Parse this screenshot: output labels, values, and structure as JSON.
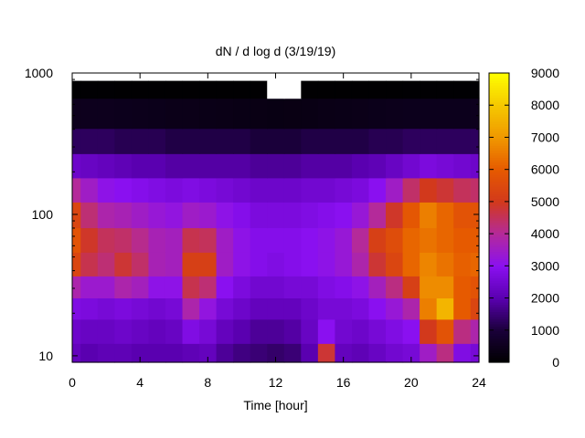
{
  "chart_data": {
    "type": "heatmap",
    "title": "dN / d log d (3/19/19)",
    "xlabel": "Time [hour]",
    "ylabel": "",
    "xlim": [
      0,
      24
    ],
    "ylim": [
      9,
      1000
    ],
    "y_scale": "log",
    "x_ticks": [
      0,
      4,
      8,
      12,
      16,
      20,
      24
    ],
    "y_ticks": [
      10,
      100,
      1000
    ],
    "colorbar": {
      "range": [
        0,
        9000
      ],
      "ticks": [
        0,
        1000,
        2000,
        3000,
        4000,
        5000,
        6000,
        7000,
        8000,
        9000
      ],
      "palette": [
        "#000000",
        "#1a003a",
        "#5a00b0",
        "#8a10f0",
        "#b42a9a",
        "#d2391c",
        "#e65a00",
        "#f09800",
        "#f5c800",
        "#ffff00"
      ]
    },
    "grid": false,
    "legend": "colorbar-right",
    "time_hours": [
      0,
      1,
      2,
      3,
      4,
      5,
      6,
      7,
      8,
      9,
      10,
      11,
      12,
      13,
      14,
      15,
      16,
      17,
      18,
      19,
      20,
      21,
      22,
      23,
      24
    ],
    "diameter_nm": [
      10,
      15,
      22,
      30,
      45,
      65,
      100,
      150,
      220,
      330,
      500,
      880
    ],
    "z": [
      [
        2200,
        2000,
        2100,
        2100,
        2000,
        2000,
        2000,
        2100,
        2200,
        1800,
        1600,
        1500,
        1400,
        1500,
        2000,
        4800,
        2200,
        2100,
        2300,
        2500,
        2600,
        3500,
        4200,
        2800,
        2600
      ],
      [
        2400,
        2300,
        2300,
        2400,
        2300,
        2200,
        2300,
        2800,
        2600,
        2200,
        2000,
        1800,
        1800,
        1900,
        2300,
        3000,
        2500,
        2400,
        2600,
        2800,
        3000,
        5000,
        5800,
        4200,
        3800
      ],
      [
        2800,
        2700,
        2600,
        2700,
        2600,
        2500,
        2600,
        3800,
        3200,
        2600,
        2400,
        2200,
        2200,
        2200,
        2400,
        2600,
        2600,
        2700,
        3000,
        3300,
        3800,
        6600,
        7600,
        6000,
        5400
      ],
      [
        3800,
        3400,
        3400,
        3800,
        3600,
        3100,
        3100,
        4600,
        4300,
        3000,
        2700,
        2500,
        2500,
        2600,
        2600,
        2800,
        2900,
        3100,
        3600,
        4200,
        5200,
        6800,
        6800,
        6000,
        5800
      ],
      [
        5400,
        4600,
        4300,
        4800,
        4400,
        3700,
        3600,
        5200,
        5200,
        3500,
        3100,
        2900,
        2800,
        2900,
        3000,
        3100,
        3300,
        3800,
        4800,
        5400,
        6200,
        6700,
        6400,
        6100,
        6200
      ],
      [
        5800,
        4900,
        4500,
        4400,
        4100,
        3700,
        3600,
        4600,
        4500,
        3500,
        3100,
        2900,
        2900,
        2900,
        3000,
        3100,
        3300,
        4000,
        5200,
        5600,
        6200,
        6400,
        6200,
        6000,
        6000
      ],
      [
        5400,
        4300,
        3800,
        3700,
        3500,
        3300,
        3200,
        3500,
        3400,
        3100,
        2900,
        2700,
        2700,
        2700,
        2800,
        2900,
        3000,
        3300,
        4000,
        4900,
        5900,
        6600,
        6200,
        5800,
        5800
      ],
      [
        4000,
        3500,
        3100,
        3000,
        2900,
        2800,
        2700,
        2800,
        2700,
        2600,
        2500,
        2400,
        2400,
        2400,
        2500,
        2500,
        2600,
        2700,
        3000,
        3500,
        4400,
        5000,
        4800,
        4500,
        4400
      ],
      [
        2400,
        2300,
        2200,
        2100,
        2000,
        2000,
        1900,
        1900,
        1900,
        1900,
        1900,
        1800,
        1800,
        1800,
        1900,
        1900,
        1900,
        2000,
        2100,
        2300,
        2500,
        2700,
        2600,
        2500,
        2400
      ],
      [
        1300,
        1300,
        1300,
        1200,
        1200,
        1200,
        1100,
        1100,
        1100,
        1100,
        1100,
        1000,
        1000,
        1000,
        1100,
        1100,
        1100,
        1100,
        1200,
        1200,
        1300,
        1300,
        1300,
        1300,
        1300
      ],
      [
        500,
        500,
        500,
        480,
        460,
        440,
        420,
        420,
        400,
        380,
        360,
        340,
        320,
        330,
        350,
        380,
        400,
        420,
        440,
        460,
        480,
        480,
        480,
        480,
        500
      ],
      [
        50,
        50,
        50,
        40,
        40,
        40,
        40,
        40,
        40,
        30,
        30,
        30,
        null,
        null,
        30,
        30,
        30,
        40,
        40,
        40,
        50,
        50,
        50,
        50,
        50
      ]
    ]
  }
}
